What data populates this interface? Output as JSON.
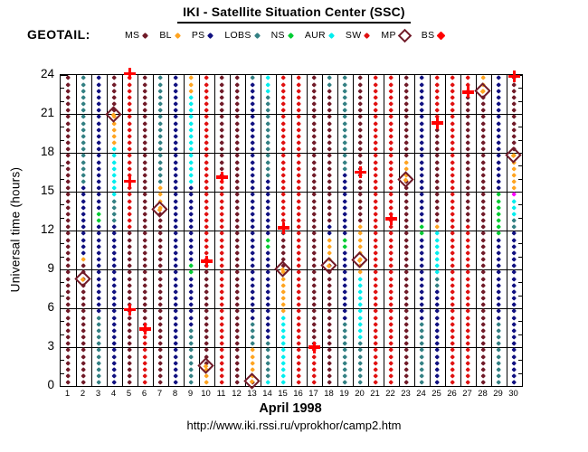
{
  "title": "IKI - Satellite Situation Center (SSC)",
  "satellite_label": "GEOTAIL:",
  "footer_url": "http://www.iki.rssi.ru/vprokhor/camp2.htm",
  "month_label": "April   1998",
  "y_axis": {
    "label": "Universal time (hours)",
    "min": 0,
    "max": 24,
    "major_ticks": [
      0,
      3,
      6,
      9,
      12,
      15,
      18,
      21,
      24
    ],
    "minor_tick_step": 1
  },
  "x_axis": {
    "day_labels": [
      "1",
      "2",
      "3",
      "4",
      "5",
      "6",
      "7",
      "8",
      "9",
      "10",
      "11",
      "12",
      "13",
      "14",
      "15",
      "16",
      "17",
      "18",
      "19",
      "20",
      "21",
      "22",
      "23",
      "24",
      "25",
      "26",
      "27",
      "28",
      "29",
      "30"
    ]
  },
  "legend": [
    {
      "label": "MS",
      "marker": "dot",
      "color": "#701A28"
    },
    {
      "label": "BL",
      "marker": "dot",
      "color": "#FFA420"
    },
    {
      "label": "PS",
      "marker": "dot",
      "color": "#101080"
    },
    {
      "label": "LOBS",
      "marker": "dot",
      "color": "#338083"
    },
    {
      "label": "NS",
      "marker": "dot",
      "color": "#00CC33"
    },
    {
      "label": "AUR",
      "marker": "dot",
      "color": "#00EEEE"
    },
    {
      "label": "SW",
      "marker": "dot",
      "color": "#E01010"
    },
    {
      "label": "MP",
      "marker": "open-diamond",
      "color": "#701A28"
    },
    {
      "label": "BS",
      "marker": "square",
      "color": "#FF0000"
    }
  ],
  "region_colors": {
    "MS": "#701A28",
    "BL": "#FFA420",
    "PS": "#101080",
    "LOBS": "#338083",
    "NS": "#00CC33",
    "AUR": "#00EEEE",
    "SW": "#E01010",
    "X": "#FF00FF"
  },
  "marker_colors": {
    "MP": "#701A28",
    "MP_center": "#FFA420",
    "BS": "#FF0000"
  },
  "chart_data": {
    "type": "scatter",
    "title": "IKI - Satellite Situation Center (SSC)",
    "xlabel": "April   1998",
    "ylabel": "Universal time (hours)",
    "ylim": [
      0,
      24
    ],
    "dot_interval_hours": 0.5,
    "legend_position": "top",
    "grid": "3h horizontal, daily vertical",
    "days": [
      {
        "day": 1,
        "segments": [
          [
            0,
            24,
            "MS"
          ]
        ],
        "markers": []
      },
      {
        "day": 2,
        "segments": [
          [
            0,
            9.4,
            "MS"
          ],
          [
            9.4,
            10.0,
            "BL"
          ],
          [
            10.0,
            15.4,
            "PS"
          ],
          [
            15.4,
            24,
            "LOBS"
          ]
        ],
        "markers": [
          [
            8.2,
            "MP"
          ]
        ]
      },
      {
        "day": 3,
        "segments": [
          [
            0,
            5.7,
            "LOBS"
          ],
          [
            5.7,
            12.6,
            "PS"
          ],
          [
            12.6,
            13.6,
            "NS"
          ],
          [
            13.6,
            24,
            "PS"
          ]
        ],
        "markers": []
      },
      {
        "day": 4,
        "segments": [
          [
            0,
            12.4,
            "PS"
          ],
          [
            12.4,
            14.4,
            "LOBS"
          ],
          [
            14.4,
            18.3,
            "AUR"
          ],
          [
            18.3,
            20.8,
            "BL"
          ],
          [
            20.8,
            24,
            "MS"
          ]
        ],
        "markers": [
          [
            20.9,
            "MP"
          ]
        ]
      },
      {
        "day": 5,
        "segments": [
          [
            0,
            12.2,
            "MS"
          ],
          [
            12.2,
            24,
            "SW"
          ]
        ],
        "markers": [
          [
            24.1,
            "BS"
          ],
          [
            15.8,
            "BS"
          ],
          [
            5.9,
            "BS"
          ]
        ]
      },
      {
        "day": 6,
        "segments": [
          [
            0,
            4.4,
            "SW"
          ],
          [
            4.4,
            24,
            "MS"
          ]
        ],
        "markers": [
          [
            4.4,
            "BS"
          ]
        ]
      },
      {
        "day": 7,
        "segments": [
          [
            0,
            13.6,
            "MS"
          ],
          [
            13.6,
            15.6,
            "BL"
          ],
          [
            15.6,
            24,
            "LOBS"
          ]
        ],
        "markers": [
          [
            13.6,
            "MP"
          ]
        ]
      },
      {
        "day": 8,
        "segments": [
          [
            0,
            24,
            "PS"
          ]
        ],
        "markers": []
      },
      {
        "day": 9,
        "segments": [
          [
            0,
            4.6,
            "LOBS"
          ],
          [
            4.6,
            8.4,
            "PS"
          ],
          [
            8.4,
            9.4,
            "NS"
          ],
          [
            9.4,
            15.5,
            "PS"
          ],
          [
            15.5,
            22.6,
            "AUR"
          ],
          [
            22.6,
            24,
            "BL"
          ]
        ],
        "markers": []
      },
      {
        "day": 10,
        "segments": [
          [
            0,
            1.5,
            "BL"
          ],
          [
            1.5,
            9.6,
            "MS"
          ],
          [
            9.6,
            24,
            "SW"
          ]
        ],
        "markers": [
          [
            9.6,
            "BS"
          ],
          [
            1.55,
            "MP"
          ]
        ]
      },
      {
        "day": 11,
        "segments": [
          [
            0,
            16.1,
            "SW"
          ],
          [
            16.1,
            24,
            "MS"
          ]
        ],
        "markers": [
          [
            16.1,
            "BS"
          ]
        ]
      },
      {
        "day": 12,
        "segments": [
          [
            0,
            24,
            "MS"
          ]
        ],
        "markers": []
      },
      {
        "day": 13,
        "segments": [
          [
            0,
            0.3,
            "MS"
          ],
          [
            0.3,
            2.8,
            "BL"
          ],
          [
            2.8,
            5.0,
            "LOBS"
          ],
          [
            5.0,
            23.3,
            "PS"
          ],
          [
            23.3,
            24,
            "LOBS"
          ]
        ],
        "markers": [
          [
            0.35,
            "MP"
          ]
        ]
      },
      {
        "day": 14,
        "segments": [
          [
            0,
            0.7,
            "AUR"
          ],
          [
            0.7,
            3.7,
            "LOBS"
          ],
          [
            3.7,
            10.4,
            "PS"
          ],
          [
            10.4,
            11.4,
            "NS"
          ],
          [
            11.4,
            16.2,
            "PS"
          ],
          [
            16.2,
            22.3,
            "LOBS"
          ],
          [
            22.3,
            24,
            "AUR"
          ]
        ],
        "markers": []
      },
      {
        "day": 15,
        "segments": [
          [
            0,
            0.25,
            "LOBS"
          ],
          [
            0.25,
            5.7,
            "AUR"
          ],
          [
            5.7,
            9.0,
            "BL"
          ],
          [
            9.0,
            12.2,
            "MS"
          ],
          [
            12.2,
            24,
            "SW"
          ]
        ],
        "markers": [
          [
            9.0,
            "MP"
          ],
          [
            12.2,
            "BS"
          ]
        ]
      },
      {
        "day": 16,
        "segments": [
          [
            0,
            24,
            "SW"
          ]
        ],
        "markers": []
      },
      {
        "day": 17,
        "segments": [
          [
            0,
            3.0,
            "SW"
          ],
          [
            3.0,
            24,
            "MS"
          ]
        ],
        "markers": [
          [
            3.0,
            "BS"
          ]
        ]
      },
      {
        "day": 18,
        "segments": [
          [
            0,
            9.3,
            "MS"
          ],
          [
            9.3,
            11.5,
            "BL"
          ],
          [
            11.5,
            12.7,
            "PS"
          ],
          [
            12.7,
            23.2,
            "MS"
          ],
          [
            23.2,
            24,
            "LOBS"
          ]
        ],
        "markers": [
          [
            9.3,
            "MP"
          ]
        ]
      },
      {
        "day": 19,
        "segments": [
          [
            0,
            5.2,
            "LOBS"
          ],
          [
            5.2,
            10.5,
            "PS"
          ],
          [
            10.5,
            11.7,
            "NS"
          ],
          [
            11.7,
            16.3,
            "PS"
          ],
          [
            16.3,
            24,
            "LOBS"
          ]
        ],
        "markers": []
      },
      {
        "day": 20,
        "segments": [
          [
            0,
            3.7,
            "LOBS"
          ],
          [
            3.7,
            8.4,
            "AUR"
          ],
          [
            8.4,
            12.4,
            "BL"
          ],
          [
            12.4,
            24,
            "MS"
          ]
        ],
        "markers": [
          [
            9.7,
            "MP"
          ],
          [
            16.5,
            "BS"
          ]
        ]
      },
      {
        "day": 21,
        "segments": [
          [
            0,
            24,
            "SW"
          ]
        ],
        "markers": []
      },
      {
        "day": 22,
        "segments": [
          [
            0,
            24,
            "SW"
          ]
        ],
        "markers": [
          [
            12.9,
            "BS"
          ]
        ]
      },
      {
        "day": 23,
        "segments": [
          [
            0,
            16.0,
            "MS"
          ],
          [
            16.0,
            17.7,
            "BL"
          ],
          [
            17.7,
            24,
            "MS"
          ]
        ],
        "markers": [
          [
            15.9,
            "MP"
          ]
        ]
      },
      {
        "day": 24,
        "segments": [
          [
            0,
            5.2,
            "LOBS"
          ],
          [
            5.2,
            11.4,
            "PS"
          ],
          [
            11.4,
            12.7,
            "NS"
          ],
          [
            12.7,
            24,
            "PS"
          ]
        ],
        "markers": []
      },
      {
        "day": 25,
        "segments": [
          [
            0,
            7.6,
            "PS"
          ],
          [
            7.6,
            8.7,
            "LOBS"
          ],
          [
            8.7,
            11.8,
            "AUR"
          ],
          [
            11.8,
            12.1,
            "X"
          ],
          [
            12.1,
            12.6,
            "BL"
          ],
          [
            12.6,
            20.3,
            "MS"
          ],
          [
            20.3,
            24,
            "SW"
          ]
        ],
        "markers": [
          [
            20.3,
            "BS"
          ]
        ]
      },
      {
        "day": 26,
        "segments": [
          [
            0,
            24,
            "SW"
          ]
        ],
        "markers": []
      },
      {
        "day": 27,
        "segments": [
          [
            0,
            12.5,
            "SW"
          ],
          [
            12.5,
            22.7,
            "MS"
          ],
          [
            22.7,
            24,
            "SW"
          ]
        ],
        "markers": [
          [
            22.7,
            "BS"
          ]
        ]
      },
      {
        "day": 28,
        "segments": [
          [
            0,
            22.7,
            "MS"
          ],
          [
            22.7,
            24,
            "BL"
          ]
        ],
        "markers": [
          [
            22.75,
            "MP"
          ]
        ]
      },
      {
        "day": 29,
        "segments": [
          [
            0,
            4.8,
            "LOBS"
          ],
          [
            4.8,
            11.4,
            "PS"
          ],
          [
            11.4,
            15.2,
            "NS"
          ],
          [
            15.2,
            24,
            "PS"
          ]
        ],
        "markers": []
      },
      {
        "day": 30,
        "segments": [
          [
            0,
            11.9,
            "PS"
          ],
          [
            11.9,
            12.8,
            "LOBS"
          ],
          [
            12.8,
            14.5,
            "AUR"
          ],
          [
            14.5,
            15.2,
            "X"
          ],
          [
            15.2,
            17.8,
            "BL"
          ],
          [
            17.8,
            24,
            "MS"
          ]
        ],
        "markers": [
          [
            17.8,
            "MP"
          ],
          [
            23.9,
            "BS"
          ]
        ]
      }
    ]
  }
}
